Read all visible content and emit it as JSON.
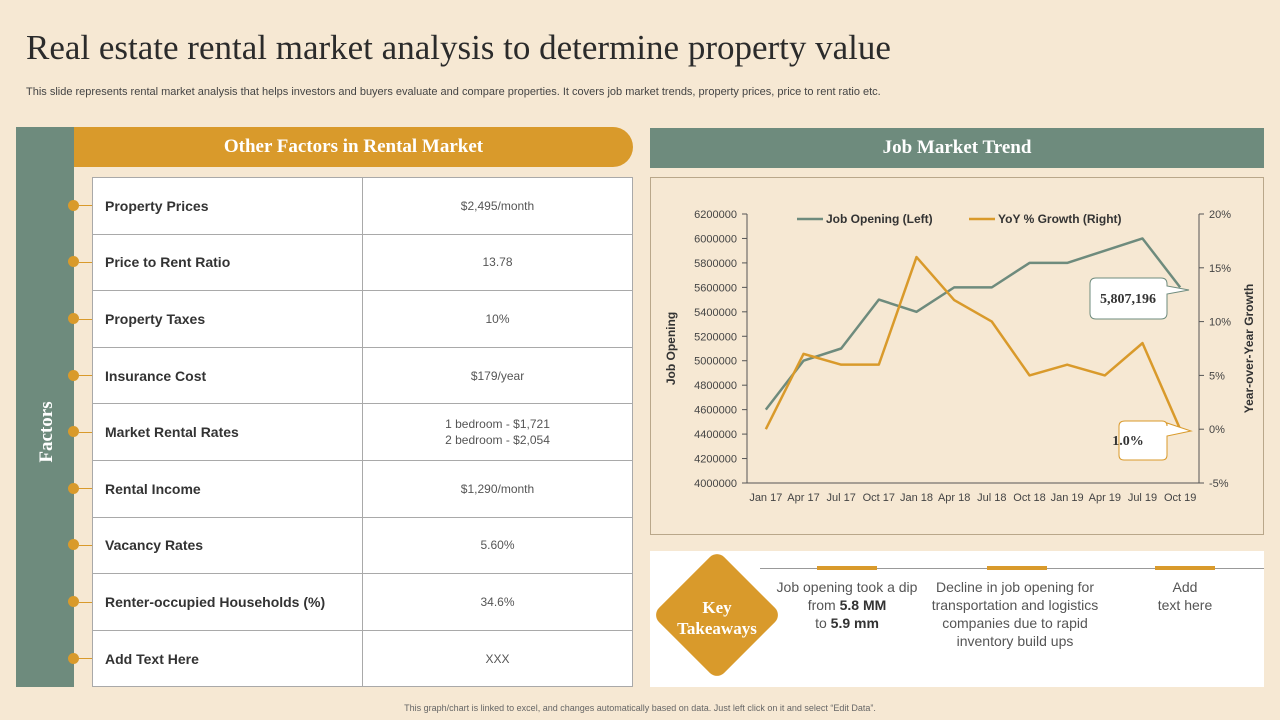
{
  "title": "Real estate rental market analysis to determine property value",
  "subtitle": "This slide represents rental market analysis that helps investors and buyers evaluate and compare properties. It covers job market trends, property prices, price to rent ratio etc.",
  "left_panel": {
    "side_label": "Factors",
    "header": "Other Factors in Rental Market",
    "rows": [
      {
        "factor": "Property Prices",
        "value": "$2,495/month"
      },
      {
        "factor": "Price to Rent Ratio",
        "value": "13.78"
      },
      {
        "factor": "Property Taxes",
        "value": "10%"
      },
      {
        "factor": "Insurance Cost",
        "value": "$179/year"
      },
      {
        "factor": "Market Rental Rates",
        "value": "1 bedroom  - $1,721\n2 bedroom  - $2,054"
      },
      {
        "factor": "Rental Income",
        "value": "$1,290/month"
      },
      {
        "factor": "Vacancy  Rates",
        "value": "5.60%"
      },
      {
        "factor": "Renter-occupied Households (%)",
        "value": "34.6%"
      },
      {
        "factor": "Add  Text Here",
        "value": "XXX"
      }
    ]
  },
  "right_panel": {
    "header": "Job Market Trend",
    "callout_top": "5,807,196",
    "callout_bottom": "1.0%"
  },
  "chart_data": {
    "type": "line",
    "categories": [
      "Jan 17",
      "Apr 17",
      "Jul 17",
      "Oct 17",
      "Jan 18",
      "Apr 18",
      "Jul 18",
      "Oct 18",
      "Jan 19",
      "Apr 19",
      "Jul 19",
      "Oct 19"
    ],
    "series": [
      {
        "name": "Job Opening (Left)",
        "axis": "left",
        "color": "#6e8b7d",
        "values": [
          4600000,
          5000000,
          5100000,
          5500000,
          5400000,
          5600000,
          5600000,
          5800000,
          5800000,
          5900000,
          6000000,
          5600000
        ]
      },
      {
        "name": "YoY % Growth (Right)",
        "axis": "right",
        "color": "#d99a2b",
        "values": [
          0,
          7,
          6,
          6,
          16,
          12,
          10,
          5,
          6,
          5,
          8,
          0
        ]
      }
    ],
    "ylabel": "Job Opening",
    "y2label": "Year-over-Year Growth",
    "ylim": [
      4000000,
      6200000
    ],
    "y2lim": [
      -5,
      20
    ],
    "yticks": [
      "6200000",
      "6000000",
      "5800000",
      "5600000",
      "5400000",
      "5200000",
      "5000000",
      "4800000",
      "4600000",
      "4400000",
      "4200000",
      "4000000"
    ],
    "y2ticks": [
      "20%",
      "15%",
      "10%",
      "5%",
      "0%",
      "-5%"
    ],
    "legend": "top"
  },
  "takeaways": {
    "label_line1": "Key",
    "label_line2": "Takeaways",
    "item1_pre": "Job opening took a dip from ",
    "item1_b1": "5.8 MM",
    "item1_mid": " to ",
    "item1_b2": "5.9 mm",
    "item2": "Decline in job opening for transportation and logistics  companies due to rapid inventory build ups",
    "item3": "Add\ntext here"
  },
  "footer": "This graph/chart is linked to excel, and changes automatically based on data. Just left click on it and select “Edit Data”."
}
